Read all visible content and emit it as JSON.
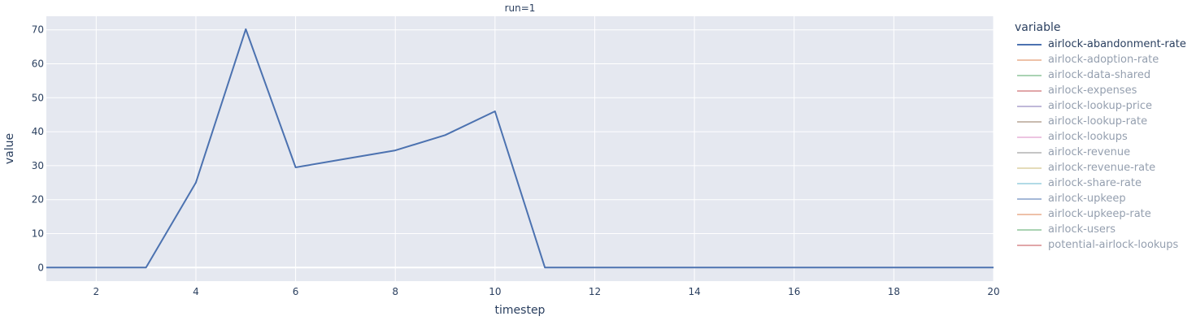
{
  "facet_title": "run=1",
  "legend": {
    "title": "variable",
    "items": [
      {
        "label": "airlock-abandonment-rate",
        "color": "#4C72B0",
        "visible": true
      },
      {
        "label": "airlock-adoption-rate",
        "color": "#DD8452",
        "visible": false
      },
      {
        "label": "airlock-data-shared",
        "color": "#55A868",
        "visible": false
      },
      {
        "label": "airlock-expenses",
        "color": "#C44E52",
        "visible": false
      },
      {
        "label": "airlock-lookup-price",
        "color": "#8172B3",
        "visible": false
      },
      {
        "label": "airlock-lookup-rate",
        "color": "#937860",
        "visible": false
      },
      {
        "label": "airlock-lookups",
        "color": "#DA8BC3",
        "visible": false
      },
      {
        "label": "airlock-revenue",
        "color": "#8C8C8C",
        "visible": false
      },
      {
        "label": "airlock-revenue-rate",
        "color": "#CCB974",
        "visible": false
      },
      {
        "label": "airlock-share-rate",
        "color": "#64B5CD",
        "visible": false
      },
      {
        "label": "airlock-upkeep",
        "color": "#4C72B0",
        "visible": false
      },
      {
        "label": "airlock-upkeep-rate",
        "color": "#DD8452",
        "visible": false
      },
      {
        "label": "airlock-users",
        "color": "#55A868",
        "visible": false
      },
      {
        "label": "potential-airlock-lookups",
        "color": "#C44E52",
        "visible": false
      }
    ]
  },
  "chart_data": {
    "type": "line",
    "title": "run=1",
    "xlabel": "timestep",
    "ylabel": "value",
    "xlim": [
      1,
      20
    ],
    "ylim": [
      -4,
      74
    ],
    "xticks": [
      2,
      4,
      6,
      8,
      10,
      12,
      14,
      16,
      18,
      20
    ],
    "yticks": [
      0,
      10,
      20,
      30,
      40,
      50,
      60,
      70
    ],
    "grid": true,
    "legend_position": "right",
    "background": "#E5E8F0",
    "series": [
      {
        "name": "airlock-abandonment-rate",
        "color": "#4C72B0",
        "x": [
          1,
          2,
          3,
          4,
          5,
          6,
          7,
          8,
          9,
          10,
          11,
          12,
          13,
          14,
          15,
          16,
          17,
          18,
          19,
          20
        ],
        "y": [
          0,
          0,
          0,
          25,
          70.2,
          29.5,
          32,
          34.5,
          39,
          46,
          0,
          0,
          0,
          0,
          0,
          0,
          0,
          0,
          0,
          0
        ]
      }
    ]
  }
}
